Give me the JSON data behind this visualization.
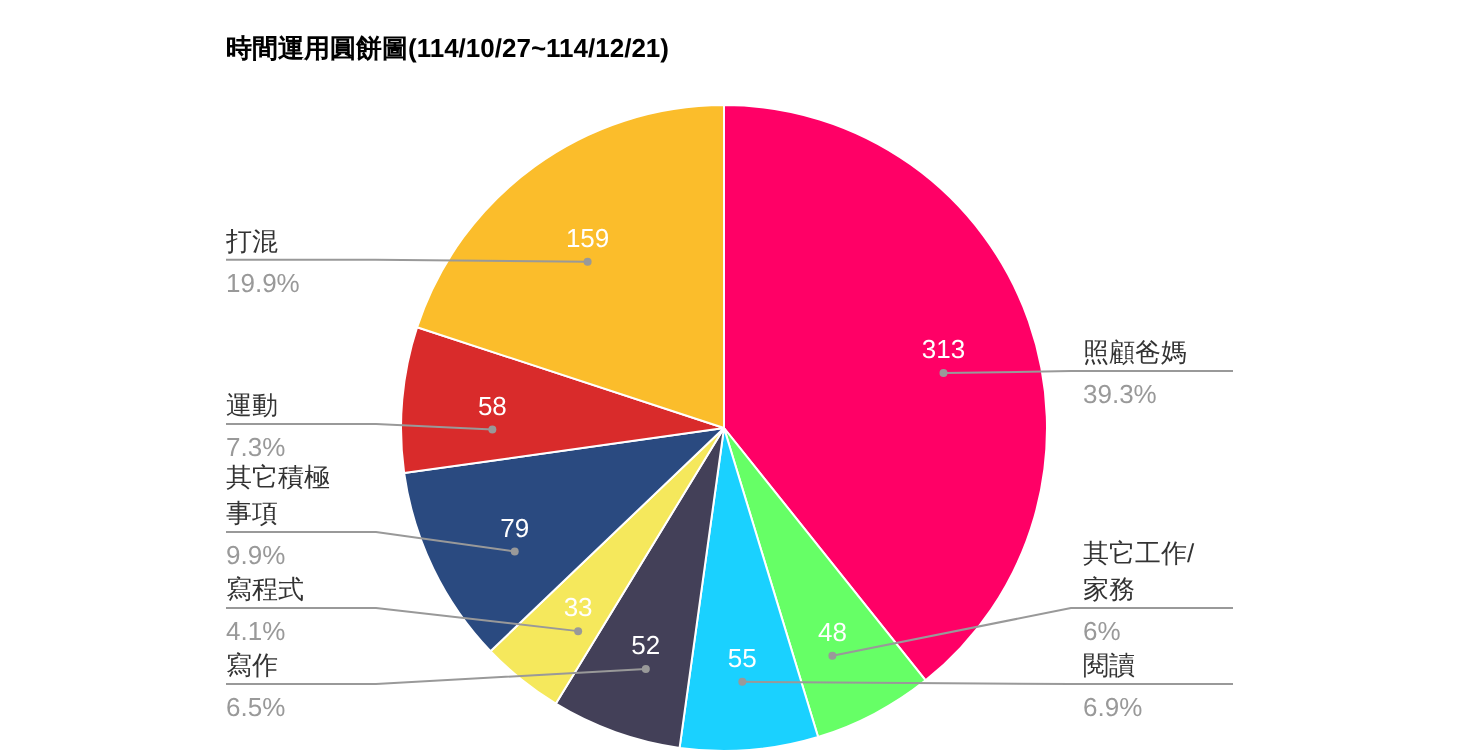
{
  "chart_data": {
    "type": "pie",
    "title": "時間運用圓餅圖(114/10/27~114/12/21)",
    "categories": [
      "照顧爸媽",
      "其它工作/家務",
      "閱讀",
      "寫作",
      "寫程式",
      "其它積極事項",
      "運動",
      "打混"
    ],
    "values": [
      313,
      48,
      55,
      52,
      33,
      79,
      58,
      159
    ],
    "colors": [
      "#ff0066",
      "#66ff66",
      "#1ad1ff",
      "#434058",
      "#f5e85c",
      "#2a4a80",
      "#d92b2b",
      "#fbbd2b"
    ],
    "data_labels": true,
    "annotations": [
      "39.3%",
      "6%",
      "6.9%",
      "6.5%",
      "4.1%",
      "9.9%",
      "7.3%",
      "19.9%"
    ],
    "legend": false
  }
}
